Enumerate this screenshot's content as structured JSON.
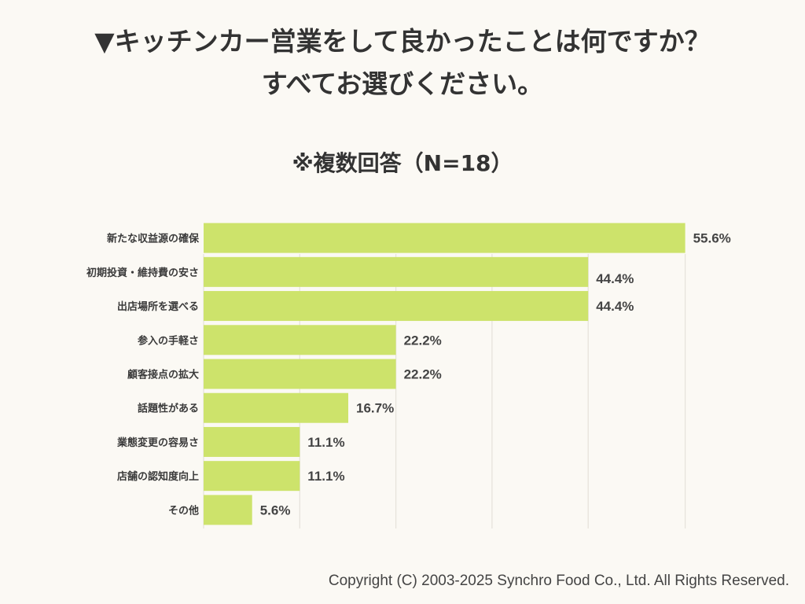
{
  "header": {
    "title_line1": "▼キッチンカー営業をして良かったことは何ですか？",
    "title_line2": "すべてお選びください。",
    "subtitle": "※複数回答（N=18）"
  },
  "chart_data": {
    "type": "bar",
    "orientation": "horizontal",
    "categories": [
      "新たな収益源の確保",
      "初期投資・維持費の安さ",
      "出店場所を選べる",
      "参入の手軽さ",
      "顧客接点の拡大",
      "話題性がある",
      "業態変更の容易さ",
      "店舗の認知度向上",
      "その他"
    ],
    "values": [
      55.6,
      44.4,
      44.4,
      22.2,
      22.2,
      16.7,
      11.1,
      11.1,
      5.6
    ],
    "value_labels": [
      "55.6%",
      "44.4%",
      "44.4%",
      "22.2%",
      "22.2%",
      "16.7%",
      "11.1%",
      "11.1%",
      "5.6%"
    ],
    "unit": "%",
    "xlim": [
      0,
      56
    ],
    "gridlines": [
      0,
      11.1,
      22.2,
      33.3,
      44.4,
      55.6
    ],
    "bar_color": "#cde36b",
    "grid_color": "#e6e3dc"
  },
  "footer": {
    "copyright": "Copyright (C) 2003-2025  Synchro Food Co., Ltd. All Rights Reserved."
  }
}
